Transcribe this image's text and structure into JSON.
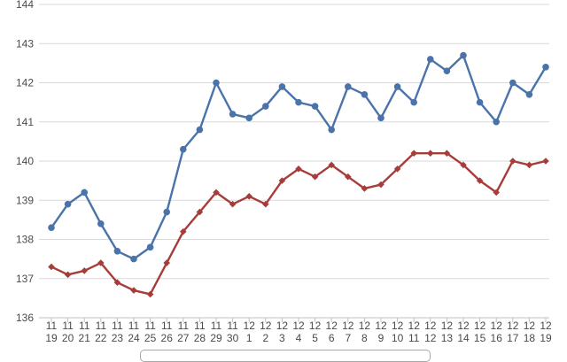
{
  "chart_data": {
    "type": "line",
    "title": "",
    "xlabel": "",
    "ylabel": "",
    "ylim": [
      136,
      144
    ],
    "y_ticks": [
      "136",
      "137",
      "138",
      "139",
      "140",
      "141",
      "142",
      "143",
      "144"
    ],
    "grid": true,
    "legend": "bottom",
    "categories": [
      {
        "month": "11",
        "day": "19"
      },
      {
        "month": "11",
        "day": "20"
      },
      {
        "month": "11",
        "day": "21"
      },
      {
        "month": "11",
        "day": "22"
      },
      {
        "month": "11",
        "day": "23"
      },
      {
        "month": "11",
        "day": "24"
      },
      {
        "month": "11",
        "day": "25"
      },
      {
        "month": "11",
        "day": "26"
      },
      {
        "month": "11",
        "day": "27"
      },
      {
        "month": "11",
        "day": "28"
      },
      {
        "month": "11",
        "day": "29"
      },
      {
        "month": "11",
        "day": "30"
      },
      {
        "month": "12",
        "day": "1"
      },
      {
        "month": "12",
        "day": "2"
      },
      {
        "month": "12",
        "day": "3"
      },
      {
        "month": "12",
        "day": "4"
      },
      {
        "month": "12",
        "day": "5"
      },
      {
        "month": "12",
        "day": "6"
      },
      {
        "month": "12",
        "day": "7"
      },
      {
        "month": "12",
        "day": "8"
      },
      {
        "month": "12",
        "day": "9"
      },
      {
        "month": "12",
        "day": "10"
      },
      {
        "month": "12",
        "day": "11"
      },
      {
        "month": "12",
        "day": "12"
      },
      {
        "month": "12",
        "day": "13"
      },
      {
        "month": "12",
        "day": "14"
      },
      {
        "month": "12",
        "day": "15"
      },
      {
        "month": "12",
        "day": "16"
      },
      {
        "month": "12",
        "day": "17"
      },
      {
        "month": "12",
        "day": "18"
      },
      {
        "month": "12",
        "day": "19"
      }
    ],
    "series": [
      {
        "color": "#4a73aa",
        "marker": "circle",
        "values": [
          138.3,
          138.9,
          139.2,
          138.4,
          137.7,
          137.5,
          137.8,
          138.7,
          140.3,
          140.8,
          142.0,
          141.2,
          141.1,
          141.4,
          141.9,
          141.5,
          141.4,
          140.8,
          141.9,
          141.7,
          141.1,
          141.9,
          141.5,
          142.6,
          142.3,
          142.7,
          141.5,
          141.0,
          142.0,
          141.7,
          142.4
        ]
      },
      {
        "color": "#a63d3a",
        "marker": "diamond",
        "values": [
          137.3,
          137.1,
          137.2,
          137.4,
          136.9,
          136.7,
          136.6,
          137.4,
          138.2,
          138.7,
          139.2,
          138.9,
          139.1,
          138.9,
          139.5,
          139.8,
          139.6,
          139.9,
          139.6,
          139.3,
          139.4,
          139.8,
          140.2,
          140.2,
          140.2,
          139.9,
          139.5,
          139.2,
          140.0,
          139.9,
          140.0
        ]
      }
    ]
  }
}
